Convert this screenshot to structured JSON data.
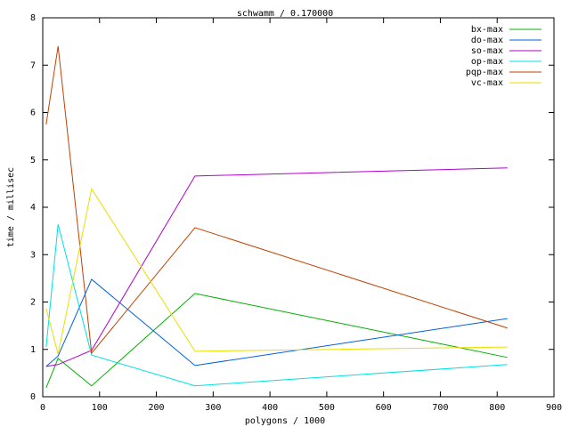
{
  "chart_data": {
    "type": "line",
    "title": "schwamm / 0.170000",
    "x_label": "polygons / 1000",
    "y_label": "time / millisec",
    "x": [
      6,
      27,
      86,
      268,
      818
    ],
    "xlim": [
      0,
      900
    ],
    "xticks": [
      0,
      100,
      200,
      300,
      400,
      500,
      600,
      700,
      800,
      900
    ],
    "ylim": [
      0,
      8
    ],
    "yticks": [
      0,
      1,
      2,
      3,
      4,
      5,
      6,
      7,
      8
    ],
    "legend": "upper right",
    "series": [
      {
        "name": "bx-max",
        "color": "#00b000",
        "values": [
          0.19,
          0.81,
          0.23,
          2.18,
          0.83
        ]
      },
      {
        "name": "do-max",
        "color": "#0060e0",
        "values": [
          0.64,
          0.86,
          2.48,
          0.66,
          1.65
        ]
      },
      {
        "name": "so-max",
        "color": "#b000d0",
        "values": [
          0.64,
          0.68,
          0.98,
          4.66,
          4.83
        ]
      },
      {
        "name": "op-max",
        "color": "#00e0e0",
        "values": [
          1.05,
          3.64,
          0.88,
          0.23,
          0.68
        ]
      },
      {
        "name": "pqp-max",
        "color": "#c04000",
        "values": [
          5.75,
          7.4,
          0.92,
          3.57,
          1.45
        ]
      },
      {
        "name": "vc-max",
        "color": "#e8e000",
        "values": [
          1.86,
          0.9,
          4.39,
          0.96,
          1.05
        ]
      }
    ]
  }
}
